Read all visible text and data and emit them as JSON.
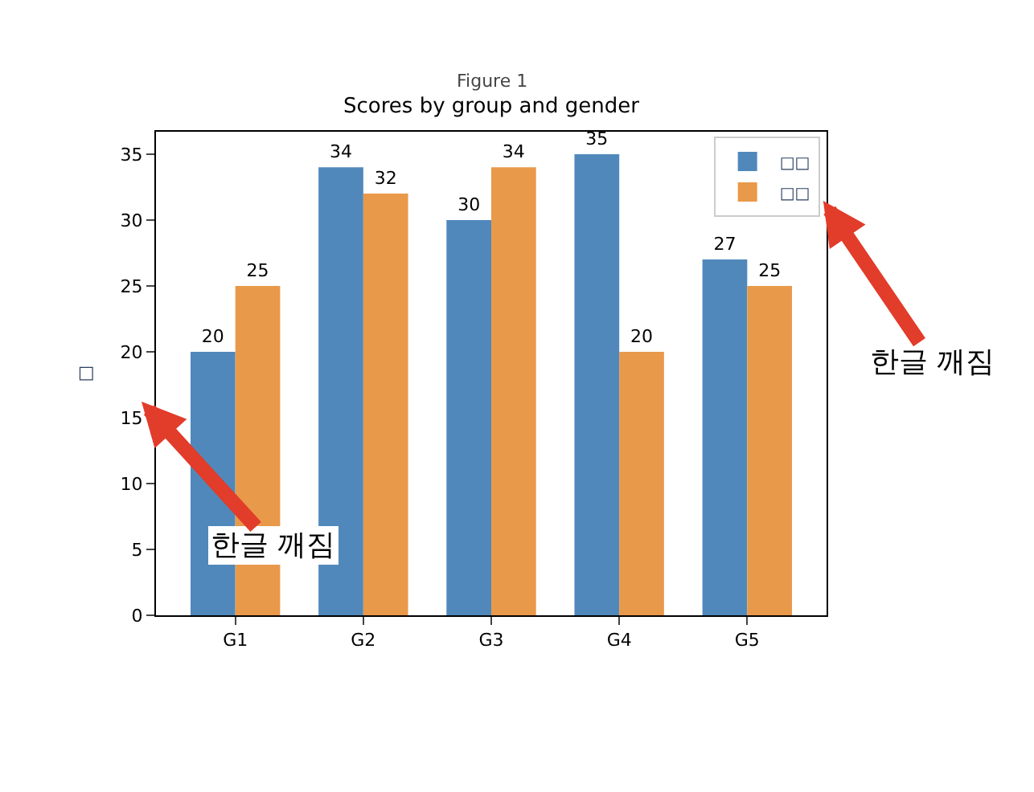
{
  "chart_data": {
    "type": "bar",
    "title": "Scores by group and gender",
    "ylabel": "□",
    "categories": [
      "G1",
      "G2",
      "G3",
      "G4",
      "G5"
    ],
    "series": [
      {
        "name": "□□",
        "color": "#5088bb",
        "values": [
          20,
          34,
          30,
          35,
          27
        ]
      },
      {
        "name": "□□",
        "color": "#e8994a",
        "values": [
          25,
          32,
          34,
          20,
          25
        ]
      }
    ],
    "ylim": [
      0,
      36.7
    ],
    "yticks": [
      0,
      5,
      10,
      15,
      20,
      25,
      30,
      35
    ],
    "legend": "top right",
    "data_labels": true,
    "annotations": [
      "Figure 1",
      "한글 깨짐",
      "한글 깨짐"
    ]
  }
}
